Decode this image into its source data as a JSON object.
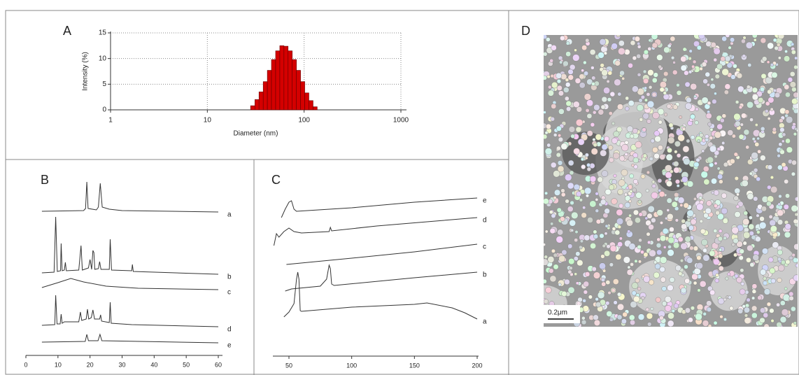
{
  "chart_data": [
    {
      "type": "histogram",
      "label": "A",
      "ylabel": "Intensity (%)",
      "xlabel": "Diameter (nm)",
      "xlog": true,
      "grid": true,
      "color": "#d40000",
      "xlim": [
        1,
        1000
      ],
      "xticks": [
        1,
        10,
        100,
        1000
      ],
      "ylim": [
        0,
        15
      ],
      "yticks": [
        0,
        5,
        10,
        15
      ],
      "bins": [
        28,
        31,
        34.2,
        37.8,
        41.7,
        46,
        50.8,
        56.1,
        61.9,
        68.3,
        75.4,
        83.3,
        91.9,
        101.5,
        112,
        123.7,
        136.5
      ],
      "values": [
        0.8,
        2,
        3.5,
        5.5,
        7.7,
        9.8,
        11.5,
        12.5,
        12.4,
        11.5,
        9.8,
        7.7,
        5.5,
        3.3,
        1.8,
        0.6
      ]
    },
    {
      "type": "line",
      "label": "B",
      "xlim": [
        0,
        60
      ],
      "xticks": [
        0,
        10,
        20,
        30,
        40,
        50,
        60
      ],
      "color": "#333333",
      "series": [
        {
          "name": "a",
          "x": [
            5,
            18,
            18.6,
            19,
            19.4,
            22,
            22.6,
            23.2,
            23.8,
            26,
            30,
            60
          ],
          "values": [
            206,
            207,
            210,
            248,
            210,
            208,
            212,
            246,
            212,
            209,
            207,
            205
          ]
        },
        {
          "name": "b",
          "x": [
            5,
            8.8,
            9.3,
            9.8,
            10.8,
            11,
            11.3,
            12,
            12.3,
            12.6,
            16.5,
            17.2,
            17.6,
            19.5,
            20,
            20.5,
            20.9,
            21.2,
            21.5,
            22.6,
            23,
            23.4,
            26,
            26.3,
            26.7,
            33,
            33.2,
            33.5,
            60
          ],
          "values": [
            118,
            119,
            198,
            120,
            121,
            160,
            121,
            122,
            133,
            121,
            122,
            157,
            122,
            125,
            137,
            123,
            150,
            147,
            123,
            124,
            134,
            123,
            123,
            166,
            122,
            121,
            130,
            120,
            116
          ]
        },
        {
          "name": "c",
          "x": [
            5,
            10,
            14,
            18,
            25,
            35,
            60
          ],
          "values": [
            97,
            104,
            110,
            105,
            99,
            96,
            94
          ]
        },
        {
          "name": "d",
          "x": [
            5,
            9,
            9.3,
            9.7,
            10.7,
            11,
            11.3,
            12,
            16.5,
            17,
            17.4,
            18.8,
            19.2,
            19.6,
            20.4,
            20.9,
            21.4,
            23,
            23.3,
            23.6,
            26,
            26.3,
            26.6,
            33,
            60
          ],
          "values": [
            43,
            44,
            86,
            45,
            45,
            59,
            46,
            48,
            48,
            62,
            50,
            52,
            66,
            52,
            54,
            65,
            52,
            52,
            58,
            49,
            47,
            76,
            46,
            44,
            41
          ]
        },
        {
          "name": "e",
          "x": [
            5,
            18.5,
            19,
            19.5,
            22.5,
            23.1,
            23.7,
            60
          ],
          "values": [
            19,
            20,
            30,
            21,
            21,
            30,
            21,
            18
          ]
        }
      ]
    },
    {
      "type": "line",
      "label": "C",
      "xlim": [
        37,
        200
      ],
      "xticks": [
        50,
        100,
        150,
        200
      ],
      "color": "#333333",
      "series": [
        {
          "name": "e",
          "x": [
            44,
            47,
            50,
            52,
            54,
            56,
            100,
            150,
            200
          ],
          "values": [
            198,
            210,
            220,
            222,
            210,
            207,
            212,
            220,
            226
          ]
        },
        {
          "name": "d",
          "x": [
            38,
            40,
            42,
            46,
            50,
            54,
            60,
            82,
            83,
            84,
            120,
            160,
            200
          ],
          "values": [
            158,
            175,
            170,
            178,
            183,
            178,
            176,
            178,
            184,
            179,
            186,
            192,
            198
          ]
        },
        {
          "name": "c",
          "x": [
            48,
            100,
            150,
            200
          ],
          "values": [
            131,
            140,
            149,
            160
          ]
        },
        {
          "name": "b",
          "x": [
            47,
            52,
            75,
            80,
            82,
            83,
            84,
            86,
            150,
            200
          ],
          "values": [
            93,
            96,
            100,
            110,
            130,
            125,
            103,
            101,
            112,
            120
          ]
        },
        {
          "name": "a",
          "x": [
            46,
            50,
            54,
            56,
            57,
            58,
            59,
            60,
            100,
            150,
            160,
            180,
            190,
            200
          ],
          "values": [
            56,
            63,
            75,
            110,
            120,
            110,
            65,
            64,
            70,
            74,
            76,
            69,
            62,
            53
          ]
        }
      ]
    }
  ],
  "image": {
    "label": "D",
    "scale_bar": "0.2μm"
  }
}
